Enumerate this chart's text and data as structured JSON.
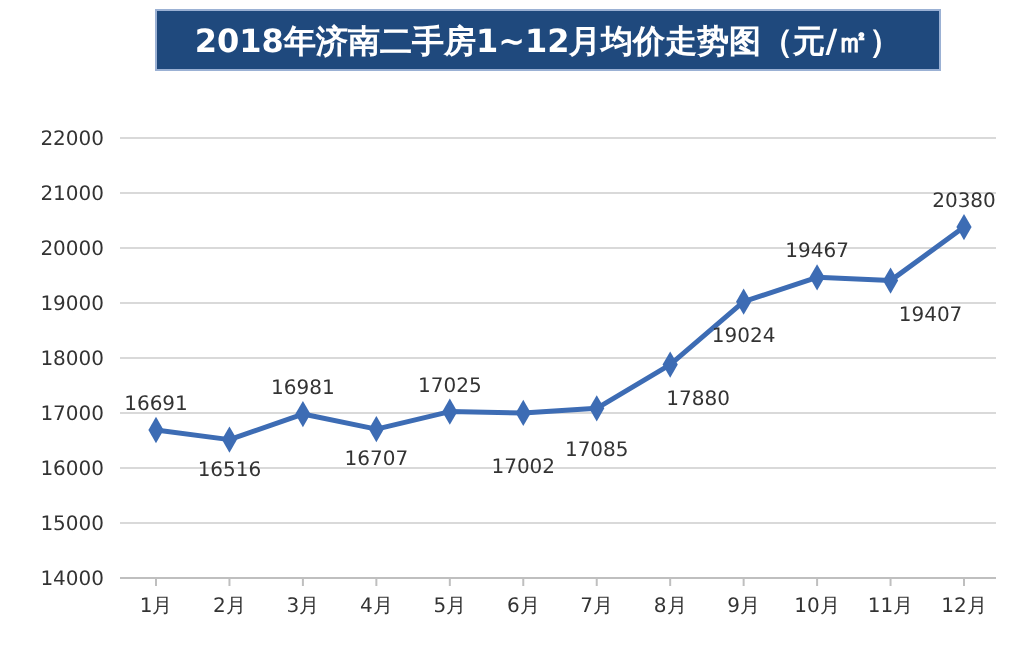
{
  "chart_data": {
    "type": "line",
    "title": "2018年济南二手房1~12月均价走势图（元/㎡）",
    "categories": [
      "1月",
      "2月",
      "3月",
      "4月",
      "5月",
      "6月",
      "7月",
      "8月",
      "9月",
      "10月",
      "11月",
      "12月"
    ],
    "series": [
      {
        "color": "#3d6cb4",
        "values": [
          16691,
          16516,
          16981,
          16707,
          17025,
          17002,
          17085,
          17880,
          19024,
          19467,
          19407,
          20380
        ]
      }
    ],
    "ylim": [
      14000,
      22000
    ],
    "yticks": [
      14000,
      15000,
      16000,
      17000,
      18000,
      19000,
      20000,
      21000,
      22000
    ],
    "grid": "y",
    "marker": "diamond",
    "line_style": "solid",
    "data_labels": true
  }
}
